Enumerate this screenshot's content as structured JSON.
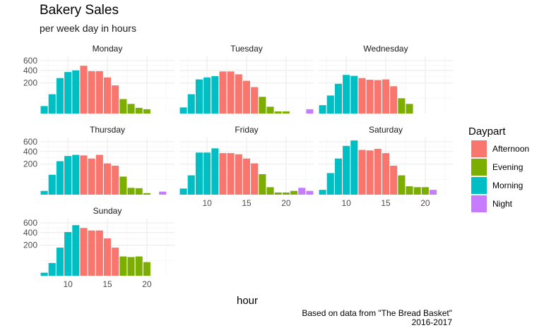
{
  "title": "Bakery Sales",
  "subtitle": "per week day in hours",
  "caption": {
    "line1": "Based on data from \"The Bread Basket\"",
    "line2": "2016-2017"
  },
  "chart_data": {
    "type": "bar",
    "xlabel": "hour",
    "ylabel": "",
    "y_scale": "sqrt",
    "ylim": [
      0,
      700
    ],
    "y_ticks": [
      200,
      400,
      600
    ],
    "x_ticks": [
      10,
      15,
      20
    ],
    "xlim": [
      6.5,
      23.5
    ],
    "grid": true,
    "legend": {
      "title": "Daypart",
      "placement": "right",
      "entries": [
        {
          "name": "Afternoon",
          "color": "#F8766D"
        },
        {
          "name": "Evening",
          "color": "#7CAE00"
        },
        {
          "name": "Morning",
          "color": "#00BFC4"
        },
        {
          "name": "Night",
          "color": "#C77CFF"
        }
      ]
    },
    "facets": [
      {
        "label": "Monday",
        "bars": [
          {
            "hour": 7,
            "value": 12,
            "daypart": "Morning"
          },
          {
            "hour": 8,
            "value": 80,
            "daypart": "Morning"
          },
          {
            "hour": 9,
            "value": 270,
            "daypart": "Morning"
          },
          {
            "hour": 10,
            "value": 370,
            "daypart": "Morning"
          },
          {
            "hour": 11,
            "value": 400,
            "daypart": "Morning"
          },
          {
            "hour": 12,
            "value": 490,
            "daypart": "Afternoon"
          },
          {
            "hour": 13,
            "value": 385,
            "daypart": "Afternoon"
          },
          {
            "hour": 14,
            "value": 385,
            "daypart": "Afternoon"
          },
          {
            "hour": 15,
            "value": 280,
            "daypart": "Afternoon"
          },
          {
            "hour": 16,
            "value": 170,
            "daypart": "Afternoon"
          },
          {
            "hour": 17,
            "value": 45,
            "daypart": "Evening"
          },
          {
            "hour": 18,
            "value": 20,
            "daypart": "Evening"
          },
          {
            "hour": 19,
            "value": 7,
            "daypart": "Evening"
          },
          {
            "hour": 20,
            "value": 4,
            "daypart": "Evening"
          }
        ]
      },
      {
        "label": "Tuesday",
        "bars": [
          {
            "hour": 7,
            "value": 8,
            "daypart": "Morning"
          },
          {
            "hour": 8,
            "value": 80,
            "daypart": "Morning"
          },
          {
            "hour": 9,
            "value": 250,
            "daypart": "Morning"
          },
          {
            "hour": 10,
            "value": 280,
            "daypart": "Morning"
          },
          {
            "hour": 11,
            "value": 300,
            "daypart": "Morning"
          },
          {
            "hour": 12,
            "value": 380,
            "daypart": "Afternoon"
          },
          {
            "hour": 13,
            "value": 380,
            "daypart": "Afternoon"
          },
          {
            "hour": 14,
            "value": 330,
            "daypart": "Afternoon"
          },
          {
            "hour": 15,
            "value": 230,
            "daypart": "Afternoon"
          },
          {
            "hour": 16,
            "value": 150,
            "daypart": "Afternoon"
          },
          {
            "hour": 17,
            "value": 60,
            "daypart": "Evening"
          },
          {
            "hour": 18,
            "value": 10,
            "daypart": "Evening"
          },
          {
            "hour": 19,
            "value": 1,
            "daypart": "Evening"
          },
          {
            "hour": 20,
            "value": 1,
            "daypart": "Evening"
          },
          {
            "hour": 23,
            "value": 4,
            "daypart": "Night"
          }
        ]
      },
      {
        "label": "Wednesday",
        "bars": [
          {
            "hour": 7,
            "value": 15,
            "daypart": "Morning"
          },
          {
            "hour": 8,
            "value": 70,
            "daypart": "Morning"
          },
          {
            "hour": 9,
            "value": 190,
            "daypart": "Morning"
          },
          {
            "hour": 10,
            "value": 320,
            "daypart": "Morning"
          },
          {
            "hour": 11,
            "value": 305,
            "daypart": "Morning"
          },
          {
            "hour": 12,
            "value": 270,
            "daypart": "Afternoon"
          },
          {
            "hour": 13,
            "value": 245,
            "daypart": "Afternoon"
          },
          {
            "hour": 14,
            "value": 240,
            "daypart": "Afternoon"
          },
          {
            "hour": 15,
            "value": 250,
            "daypart": "Afternoon"
          },
          {
            "hour": 16,
            "value": 160,
            "daypart": "Afternoon"
          },
          {
            "hour": 17,
            "value": 50,
            "daypart": "Evening"
          },
          {
            "hour": 18,
            "value": 20,
            "daypart": "Evening"
          }
        ]
      },
      {
        "label": "Thursday",
        "bars": [
          {
            "hour": 7,
            "value": 3,
            "daypart": "Morning"
          },
          {
            "hour": 8,
            "value": 85,
            "daypart": "Morning"
          },
          {
            "hour": 9,
            "value": 240,
            "daypart": "Morning"
          },
          {
            "hour": 10,
            "value": 320,
            "daypart": "Morning"
          },
          {
            "hour": 11,
            "value": 340,
            "daypart": "Morning"
          },
          {
            "hour": 12,
            "value": 330,
            "daypart": "Afternoon"
          },
          {
            "hour": 13,
            "value": 280,
            "daypart": "Afternoon"
          },
          {
            "hour": 14,
            "value": 340,
            "daypart": "Afternoon"
          },
          {
            "hour": 15,
            "value": 210,
            "daypart": "Afternoon"
          },
          {
            "hour": 16,
            "value": 180,
            "daypart": "Afternoon"
          },
          {
            "hour": 17,
            "value": 70,
            "daypart": "Evening"
          },
          {
            "hour": 18,
            "value": 10,
            "daypart": "Evening"
          },
          {
            "hour": 19,
            "value": 9,
            "daypart": "Evening"
          },
          {
            "hour": 20,
            "value": 0.5,
            "daypart": "Evening"
          },
          {
            "hour": 22,
            "value": 2,
            "daypart": "Night"
          }
        ]
      },
      {
        "label": "Friday",
        "bars": [
          {
            "hour": 7,
            "value": 8,
            "daypart": "Morning"
          },
          {
            "hour": 8,
            "value": 80,
            "daypart": "Morning"
          },
          {
            "hour": 9,
            "value": 380,
            "daypart": "Morning"
          },
          {
            "hour": 10,
            "value": 380,
            "daypart": "Morning"
          },
          {
            "hour": 11,
            "value": 460,
            "daypart": "Morning"
          },
          {
            "hour": 12,
            "value": 370,
            "daypart": "Afternoon"
          },
          {
            "hour": 13,
            "value": 370,
            "daypart": "Afternoon"
          },
          {
            "hour": 14,
            "value": 350,
            "daypart": "Afternoon"
          },
          {
            "hour": 15,
            "value": 280,
            "daypart": "Afternoon"
          },
          {
            "hour": 16,
            "value": 210,
            "daypart": "Afternoon"
          },
          {
            "hour": 17,
            "value": 90,
            "daypart": "Evening"
          },
          {
            "hour": 18,
            "value": 12,
            "daypart": "Evening"
          },
          {
            "hour": 19,
            "value": 1,
            "daypart": "Evening"
          },
          {
            "hour": 20,
            "value": 1,
            "daypart": "Evening"
          },
          {
            "hour": 21,
            "value": 3,
            "daypart": "Evening"
          },
          {
            "hour": 22,
            "value": 10,
            "daypart": "Night"
          },
          {
            "hour": 23,
            "value": 3,
            "daypart": "Night"
          }
        ]
      },
      {
        "label": "Saturday",
        "bars": [
          {
            "hour": 7,
            "value": 5,
            "daypart": "Morning"
          },
          {
            "hour": 8,
            "value": 100,
            "daypart": "Morning"
          },
          {
            "hour": 9,
            "value": 280,
            "daypart": "Morning"
          },
          {
            "hour": 10,
            "value": 510,
            "daypart": "Morning"
          },
          {
            "hour": 11,
            "value": 630,
            "daypart": "Morning"
          },
          {
            "hour": 12,
            "value": 430,
            "daypart": "Afternoon"
          },
          {
            "hour": 13,
            "value": 420,
            "daypart": "Afternoon"
          },
          {
            "hour": 14,
            "value": 450,
            "daypart": "Afternoon"
          },
          {
            "hour": 15,
            "value": 370,
            "daypart": "Afternoon"
          },
          {
            "hour": 16,
            "value": 180,
            "daypart": "Afternoon"
          },
          {
            "hour": 17,
            "value": 80,
            "daypart": "Evening"
          },
          {
            "hour": 18,
            "value": 15,
            "daypart": "Evening"
          },
          {
            "hour": 19,
            "value": 12,
            "daypart": "Evening"
          },
          {
            "hour": 20,
            "value": 12,
            "daypart": "Evening"
          },
          {
            "hour": 21,
            "value": 5,
            "daypart": "Night"
          }
        ]
      },
      {
        "label": "Sunday",
        "bars": [
          {
            "hour": 7,
            "value": 2,
            "daypart": "Morning"
          },
          {
            "hour": 8,
            "value": 35,
            "daypart": "Morning"
          },
          {
            "hour": 9,
            "value": 170,
            "daypart": "Morning"
          },
          {
            "hour": 10,
            "value": 410,
            "daypart": "Morning"
          },
          {
            "hour": 11,
            "value": 550,
            "daypart": "Morning"
          },
          {
            "hour": 12,
            "value": 490,
            "daypart": "Afternoon"
          },
          {
            "hour": 13,
            "value": 440,
            "daypart": "Afternoon"
          },
          {
            "hour": 14,
            "value": 440,
            "daypart": "Afternoon"
          },
          {
            "hour": 15,
            "value": 300,
            "daypart": "Afternoon"
          },
          {
            "hour": 16,
            "value": 170,
            "daypart": "Afternoon"
          },
          {
            "hour": 17,
            "value": 80,
            "daypart": "Evening"
          },
          {
            "hour": 18,
            "value": 75,
            "daypart": "Evening"
          },
          {
            "hour": 19,
            "value": 80,
            "daypart": "Evening"
          },
          {
            "hour": 20,
            "value": 40,
            "daypart": "Evening"
          }
        ]
      }
    ]
  }
}
